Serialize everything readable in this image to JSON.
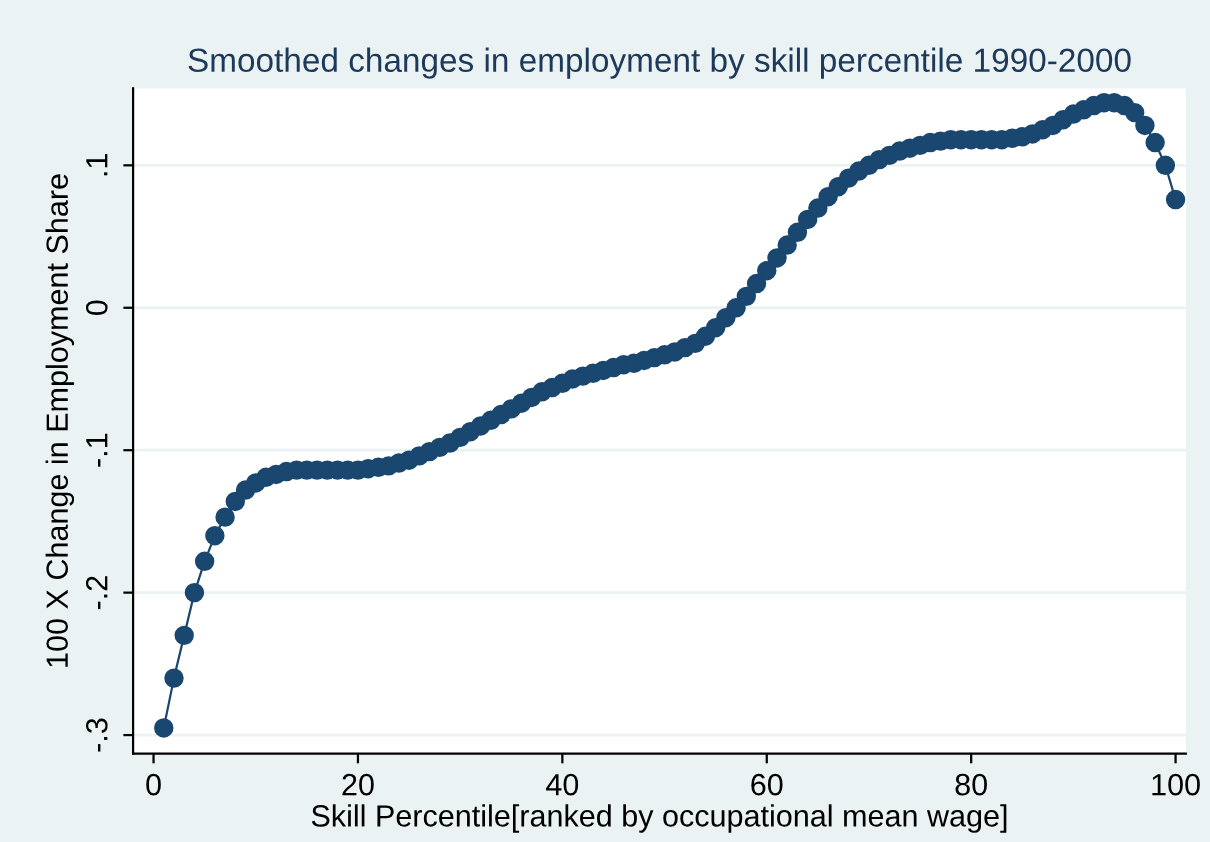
{
  "chart_data": {
    "type": "line",
    "title": "Smoothed changes in employment by skill percentile 1990-2000",
    "xlabel": "Skill Percentile[ranked by occupational mean wage]",
    "ylabel": "100 X Change in Employment Share",
    "x": [
      1,
      2,
      3,
      4,
      5,
      6,
      7,
      8,
      9,
      10,
      11,
      12,
      13,
      14,
      15,
      16,
      17,
      18,
      19,
      20,
      21,
      22,
      23,
      24,
      25,
      26,
      27,
      28,
      29,
      30,
      31,
      32,
      33,
      34,
      35,
      36,
      37,
      38,
      39,
      40,
      41,
      42,
      43,
      44,
      45,
      46,
      47,
      48,
      49,
      50,
      51,
      52,
      53,
      54,
      55,
      56,
      57,
      58,
      59,
      60,
      61,
      62,
      63,
      64,
      65,
      66,
      67,
      68,
      69,
      70,
      71,
      72,
      73,
      74,
      75,
      76,
      77,
      78,
      79,
      80,
      81,
      82,
      83,
      84,
      85,
      86,
      87,
      88,
      89,
      90,
      91,
      92,
      93,
      94,
      95,
      96,
      97,
      98,
      99,
      100
    ],
    "series": [
      {
        "color": "#1a476f",
        "values": [
          -0.295,
          -0.26,
          -0.23,
          -0.2,
          -0.178,
          -0.16,
          -0.147,
          -0.136,
          -0.128,
          -0.123,
          -0.119,
          -0.117,
          -0.115,
          -0.114,
          -0.114,
          -0.114,
          -0.114,
          -0.114,
          -0.114,
          -0.114,
          -0.113,
          -0.112,
          -0.111,
          -0.109,
          -0.107,
          -0.104,
          -0.101,
          -0.098,
          -0.095,
          -0.091,
          -0.087,
          -0.083,
          -0.079,
          -0.075,
          -0.071,
          -0.067,
          -0.063,
          -0.059,
          -0.056,
          -0.053,
          -0.05,
          -0.048,
          -0.046,
          -0.044,
          -0.042,
          -0.04,
          -0.039,
          -0.037,
          -0.035,
          -0.033,
          -0.031,
          -0.028,
          -0.025,
          -0.02,
          -0.014,
          -0.007,
          0.0,
          0.008,
          0.017,
          0.026,
          0.035,
          0.044,
          0.053,
          0.062,
          0.07,
          0.078,
          0.085,
          0.091,
          0.096,
          0.1,
          0.104,
          0.107,
          0.11,
          0.112,
          0.114,
          0.116,
          0.117,
          0.118,
          0.118,
          0.118,
          0.118,
          0.118,
          0.118,
          0.119,
          0.12,
          0.122,
          0.125,
          0.128,
          0.132,
          0.136,
          0.139,
          0.142,
          0.144,
          0.144,
          0.142,
          0.137,
          0.128,
          0.116,
          0.1,
          0.076
        ]
      }
    ],
    "xlim": [
      -2,
      101
    ],
    "xticks": [
      0,
      20,
      40,
      60,
      80,
      100
    ],
    "ylim": [
      -0.313,
      0.154
    ],
    "yticks": [
      {
        "value": -0.3,
        "label": "-.3"
      },
      {
        "value": -0.2,
        "label": "-.2"
      },
      {
        "value": -0.1,
        "label": "-.1"
      },
      {
        "value": 0,
        "label": "0"
      },
      {
        "value": 0.1,
        "label": ".1"
      }
    ],
    "grid": "y",
    "marker": "circle",
    "line_style": "solid"
  }
}
